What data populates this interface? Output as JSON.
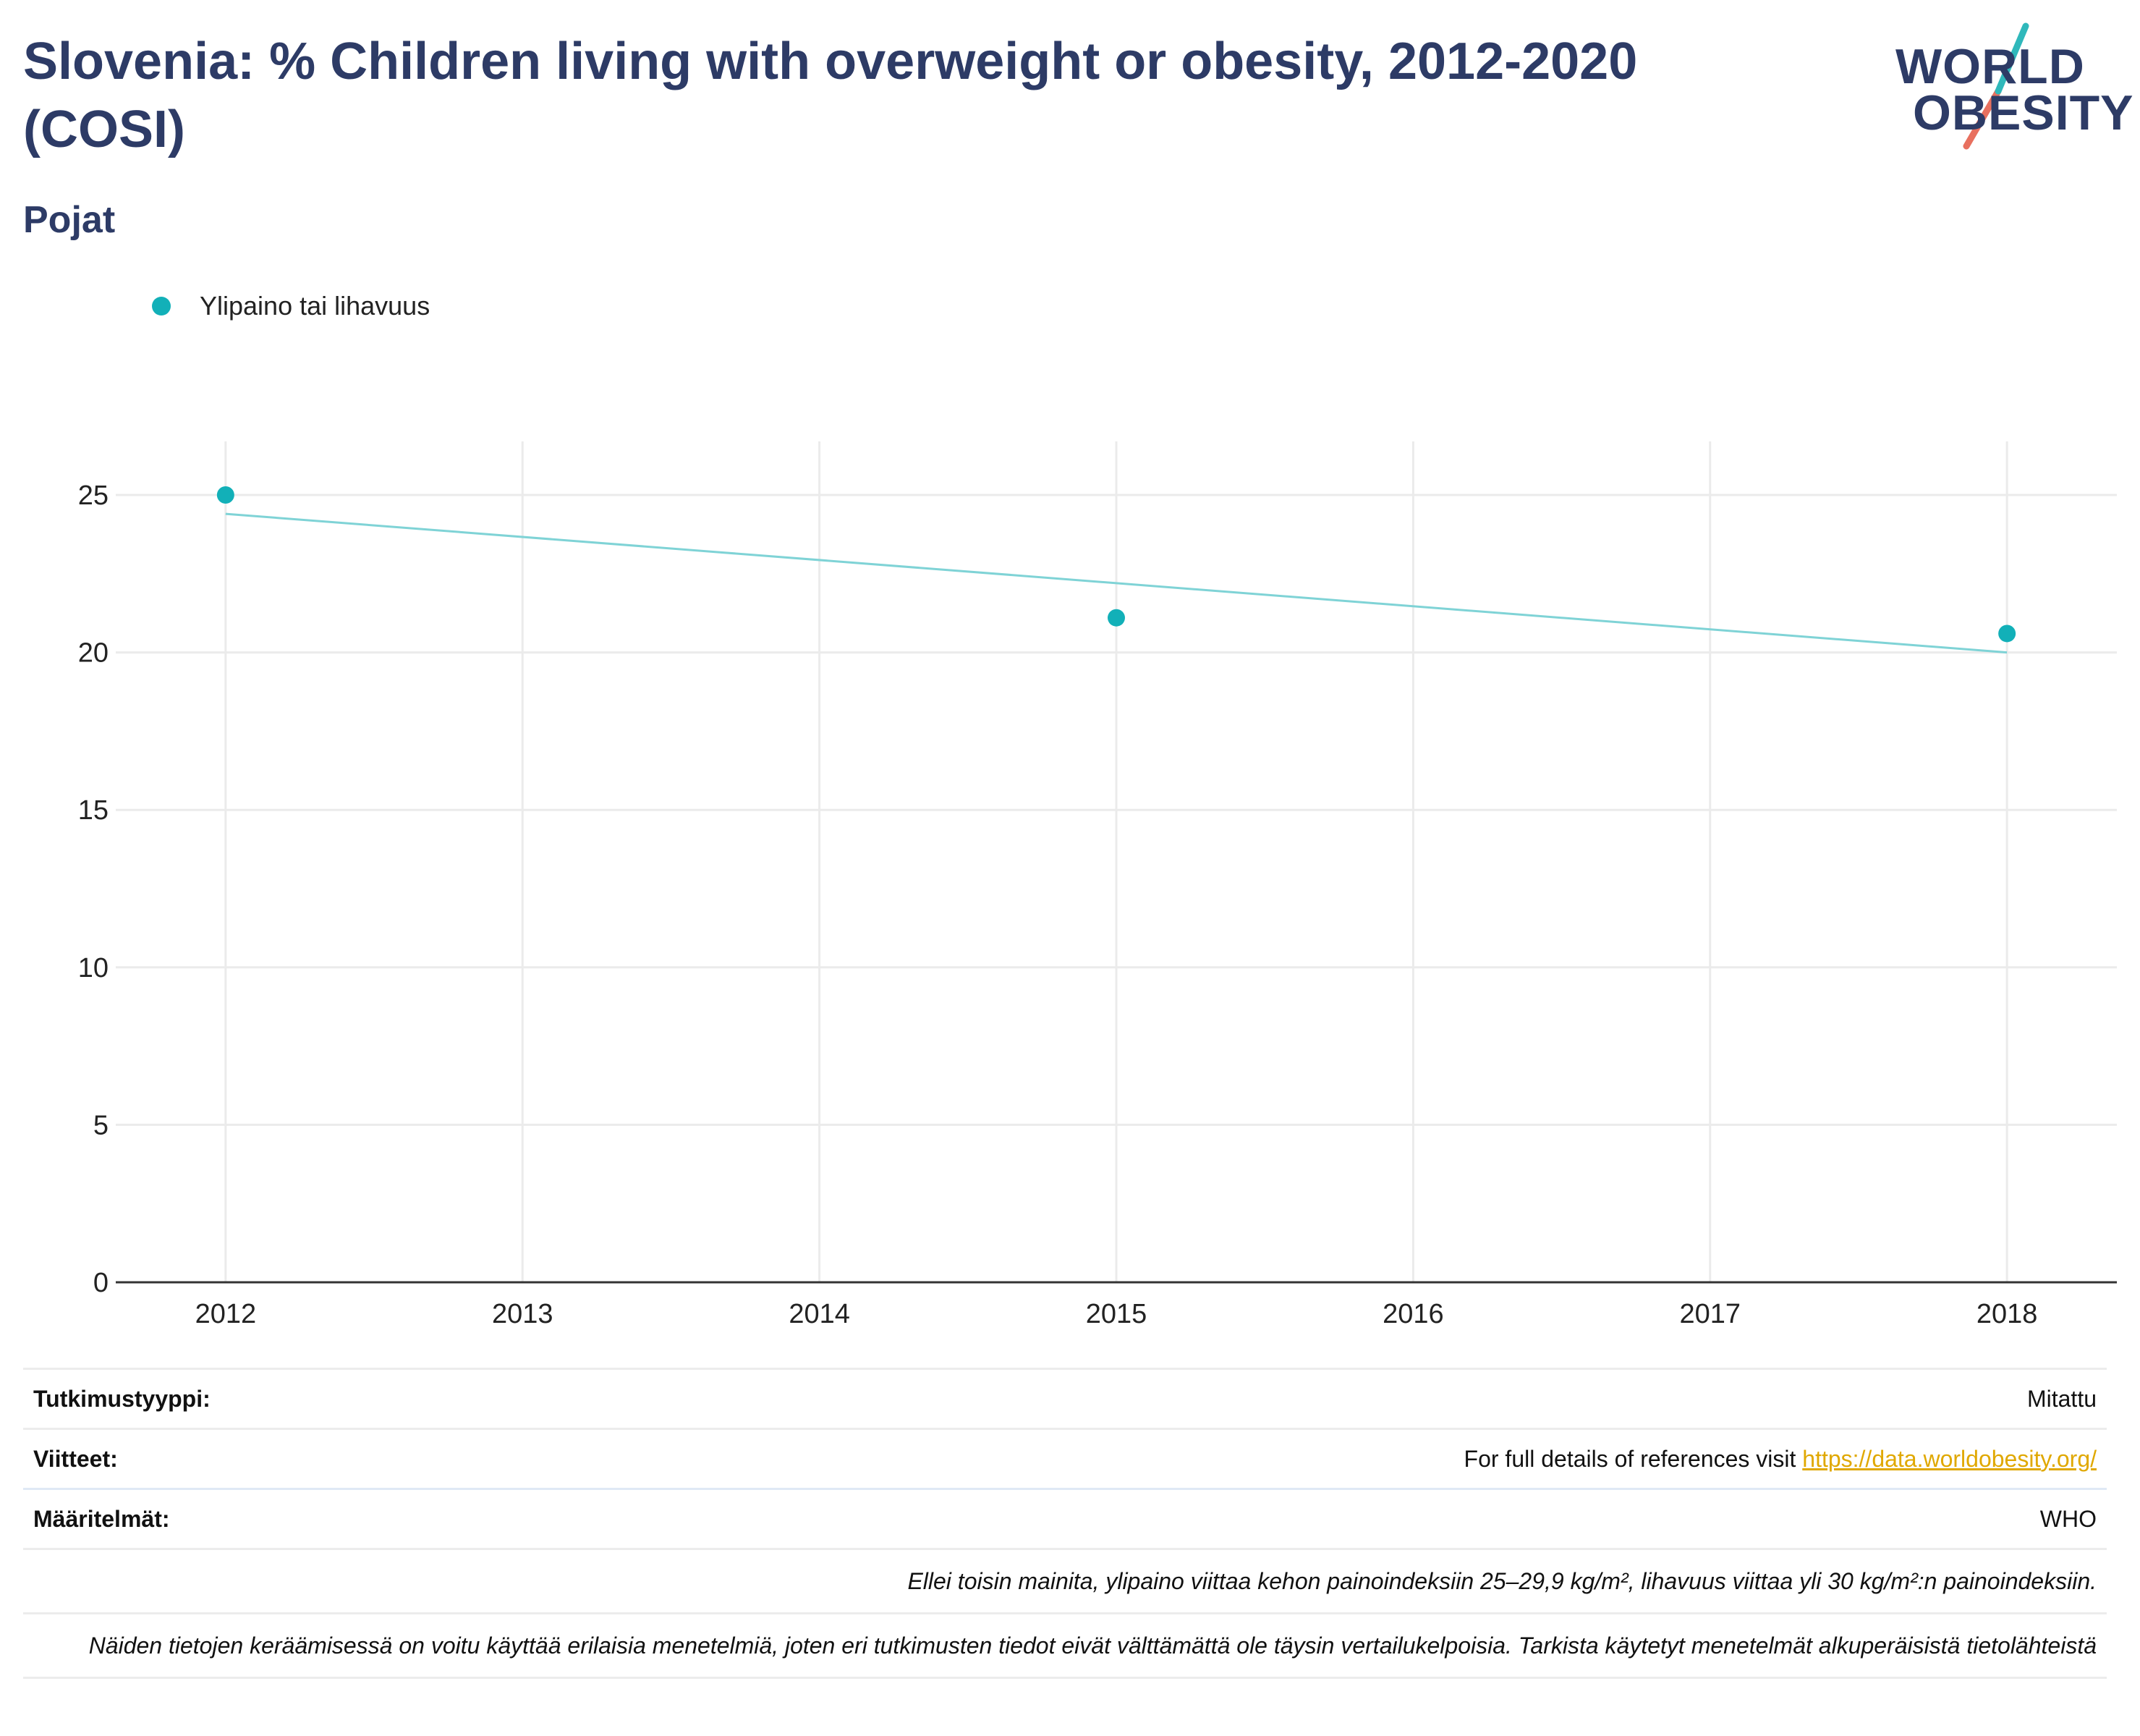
{
  "header": {
    "title": "Slovenia: % Children living with overweight or obesity, 2012-2020 (COSI)",
    "subtitle": "Pojat"
  },
  "logo": {
    "line1": "WORLD",
    "line2": "OBESITY",
    "accent_teal": "#2fb8bb",
    "accent_red": "#e8705f"
  },
  "legend": {
    "label": "Ylipaino tai lihavuus"
  },
  "colors": {
    "series": "#12b0b8",
    "trend": "#7fd3d6",
    "text_dark": "#2d3b66",
    "link": "#e0a800"
  },
  "chart_data": {
    "type": "scatter",
    "x_ticks": [
      "2012",
      "2013",
      "2014",
      "2015",
      "2016",
      "2017",
      "2018"
    ],
    "y_ticks": [
      "0",
      "5",
      "10",
      "15",
      "20",
      "25"
    ],
    "ylim": [
      0,
      26.7
    ],
    "xlim": [
      2011.63,
      2018.37
    ],
    "grid": true,
    "legend_position": "top-left",
    "series": [
      {
        "name": "Ylipaino tai lihavuus",
        "x": [
          2012,
          2015,
          2018
        ],
        "y": [
          25.0,
          21.1,
          20.6
        ]
      }
    ],
    "trendline": {
      "x": [
        2012,
        2018
      ],
      "y": [
        24.4,
        20.0
      ]
    }
  },
  "info": {
    "rows": [
      {
        "key": "Tutkimustyyppi:",
        "value": "Mitattu"
      },
      {
        "key": "Viitteet:",
        "value": "For full details of references visit ",
        "link": "https://data.worldobesity.org/"
      },
      {
        "key": "Määritelmät:",
        "value": "WHO"
      }
    ],
    "notes": [
      "Ellei toisin mainita, ylipaino viittaa kehon painoindeksiin 25–29,9 kg/m², lihavuus viittaa yli 30 kg/m²:n painoindeksiin.",
      "Näiden tietojen keräämisessä on voitu käyttää erilaisia menetelmiä, joten eri tutkimusten tiedot eivät välttämättä ole täysin vertailukelpoisia. Tarkista käytetyt menetelmät alkuperäisistä tietolähteistä"
    ]
  }
}
